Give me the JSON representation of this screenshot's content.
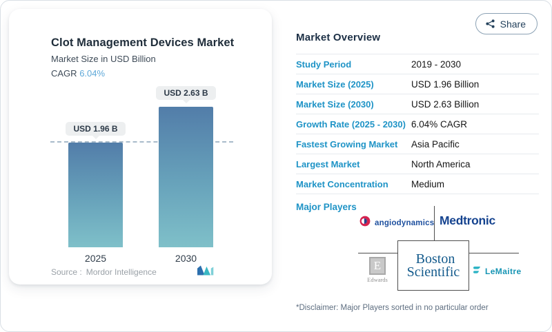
{
  "share": {
    "label": "Share"
  },
  "chart_card": {
    "title": "Clot Management Devices Market",
    "subtitle": "Market Size in USD Billion",
    "cagr_label": "CAGR",
    "cagr_value": "6.04%",
    "source_label": "Source :",
    "source_value": "Mordor Intelligence"
  },
  "chart_data": {
    "type": "bar",
    "title": "Clot Management Devices Market",
    "subtitle": "Market Size in USD Billion",
    "unit": "USD Billion",
    "categories": [
      "2025",
      "2030"
    ],
    "values": [
      1.96,
      2.63
    ],
    "data_labels": [
      "USD 1.96 B",
      "USD 2.63 B"
    ],
    "cagr": "6.04%",
    "reference_line": 1.96,
    "ylim": [
      0,
      2.63
    ],
    "grid": false,
    "legend": "none",
    "bar_color_top": "#527da9",
    "bar_color_bottom": "#7fc0c9"
  },
  "overview": {
    "heading": "Market Overview",
    "rows": [
      {
        "label": "Study Period",
        "value": "2019 - 2030"
      },
      {
        "label": "Market Size (2025)",
        "value": "USD 1.96 Billion"
      },
      {
        "label": "Market Size (2030)",
        "value": "USD 2.63 Billion"
      },
      {
        "label": "Growth Rate (2025 - 2030)",
        "value": "6.04% CAGR"
      },
      {
        "label": "Fastest Growing Market",
        "value": "Asia Pacific"
      },
      {
        "label": "Largest Market",
        "value": "North America"
      },
      {
        "label": "Market Concentration",
        "value": "Medium"
      }
    ],
    "major_players": {
      "label": "Major Players",
      "angiodynamics": "angiodynamics",
      "medtronic": "Medtronic",
      "edwards_emblem": "E",
      "edwards": "Edwards",
      "boston_line1": "Boston",
      "boston_line2": "Scientific",
      "lemaitre": "LeMaitre"
    },
    "disclaimer": "*Disclaimer: Major Players sorted in no particular order"
  },
  "colors": {
    "accent_blue": "#1e93c6",
    "cagr_blue": "#5ea8d8",
    "heading_navy": "#1c2f45",
    "bar_gradient_top": "#527da9",
    "bar_gradient_bottom": "#7fc0c9",
    "dashed_reference": "#a8bbca",
    "card_background": "#ffffff",
    "medtronic_navy": "#15438f",
    "boston_navy": "#135a8c",
    "lemaitre_teal": "#1795b4",
    "angio_red": "#d5234f"
  }
}
